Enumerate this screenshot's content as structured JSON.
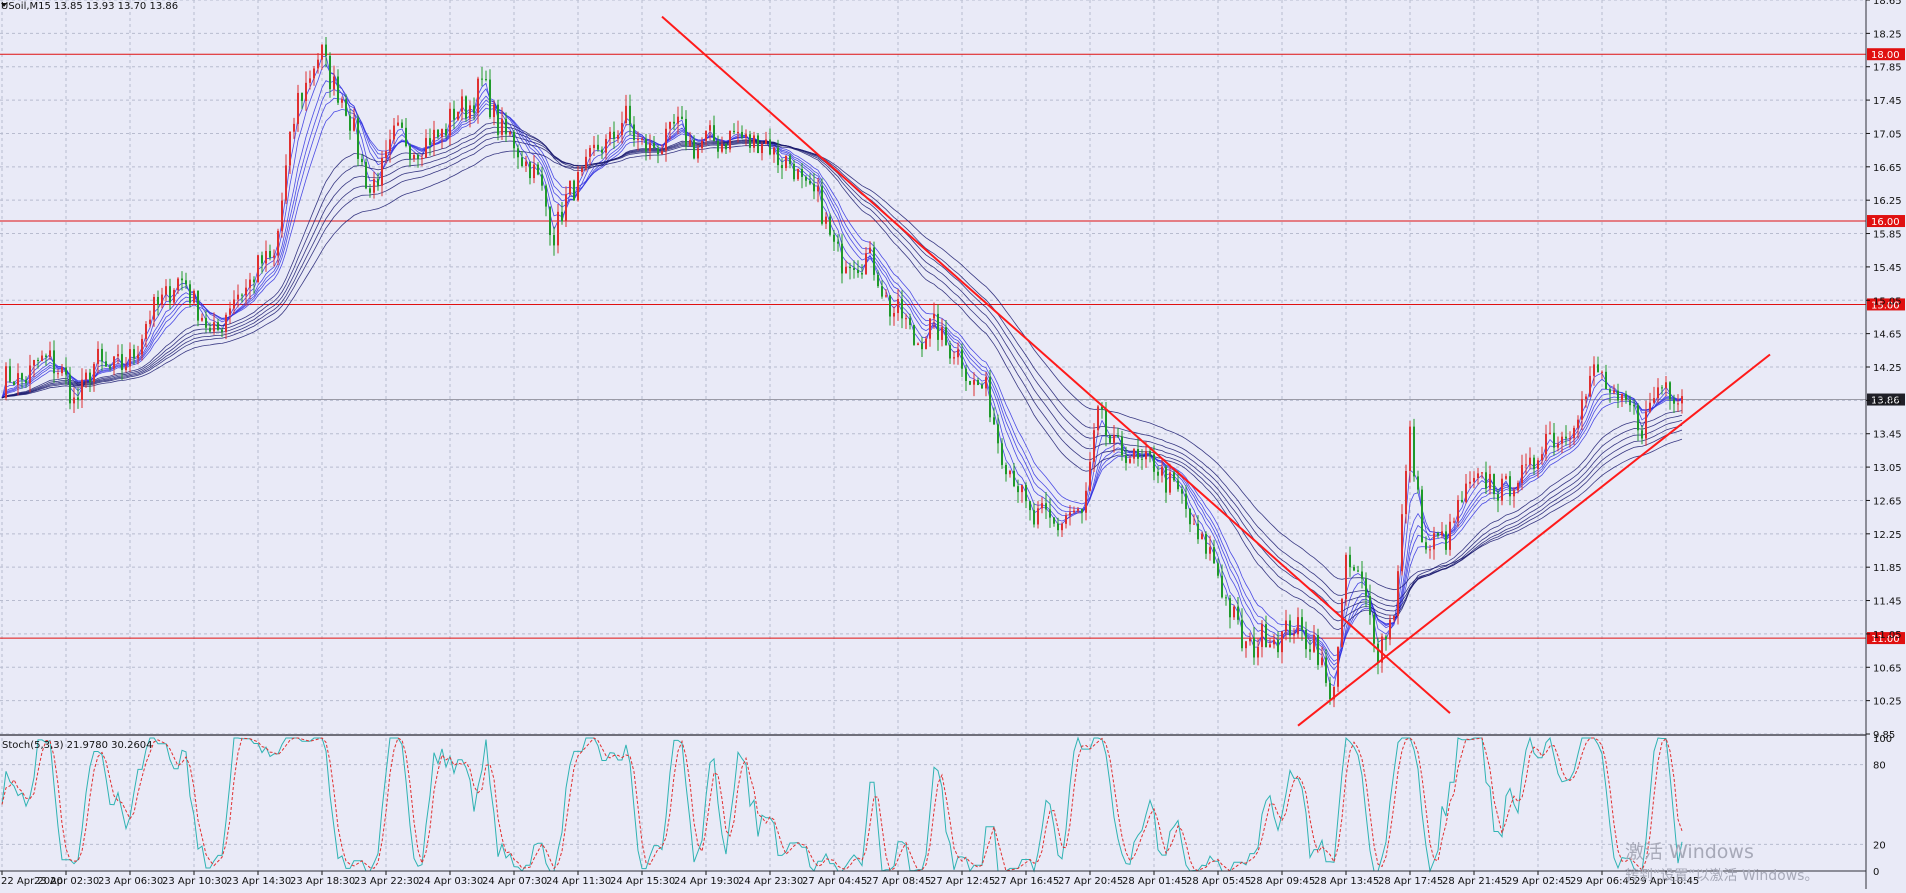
{
  "header": {
    "symbol_label": "USoil,M15  13.85 13.93 13.70 13.86"
  },
  "stoch_header": {
    "label": "Stoch(5,3,3) 21.9780 30.2604"
  },
  "watermark": {
    "line1": "激活 Windows",
    "line2": "转到“设置”以激活 Windows。"
  },
  "colors": {
    "background": "#e9eaf7",
    "grid": "#b8bccf",
    "bull_candle": "#e03030",
    "bear_candle": "#1f9a2a",
    "ribbon_fast": "#3030e0",
    "ribbon_slow": "#1a1a6e",
    "level_line": "#e01010",
    "trendline": "#ff1a1a",
    "current_price_line": "#9a9aa6",
    "stoch_main": "#2fb3b3",
    "stoch_signal": "#e03030"
  },
  "chart_data": [
    {
      "type": "candlestick",
      "title": "USoil,M15",
      "y_ticks": [
        "18.65",
        "18.25",
        "17.85",
        "17.45",
        "17.05",
        "16.65",
        "16.25",
        "15.85",
        "15.45",
        "15.05",
        "14.65",
        "14.25",
        "13.85",
        "13.45",
        "13.05",
        "12.65",
        "12.25",
        "11.85",
        "11.45",
        "11.05",
        "10.65",
        "10.25",
        "9.85"
      ],
      "ylim": [
        9.85,
        18.65
      ],
      "x_ticks": [
        "22 Apr 2020",
        "23 Apr 02:30",
        "23 Apr 06:30",
        "23 Apr 10:30",
        "23 Apr 14:30",
        "23 Apr 18:30",
        "23 Apr 22:30",
        "24 Apr 03:30",
        "24 Apr 07:30",
        "24 Apr 11:30",
        "24 Apr 15:30",
        "24 Apr 19:30",
        "24 Apr 23:30",
        "27 Apr 04:45",
        "27 Apr 08:45",
        "27 Apr 12:45",
        "27 Apr 16:45",
        "27 Apr 20:45",
        "28 Apr 01:45",
        "28 Apr 05:45",
        "28 Apr 09:45",
        "28 Apr 13:45",
        "28 Apr 17:45",
        "28 Apr 21:45",
        "29 Apr 02:45",
        "29 Apr 06:45",
        "29 Apr 10:45"
      ],
      "levels": [
        {
          "price": 18.0,
          "label": "18.00"
        },
        {
          "price": 16.0,
          "label": "16.00"
        },
        {
          "price": 15.0,
          "label": "15.00"
        },
        {
          "price": 11.0,
          "label": "11.00"
        }
      ],
      "current_price": {
        "price": 13.86,
        "label": "13.86"
      },
      "anchors": [
        {
          "i": 0,
          "p": 14.05
        },
        {
          "i": 8,
          "p": 14.2
        },
        {
          "i": 12,
          "p": 14.4
        },
        {
          "i": 18,
          "p": 13.85
        },
        {
          "i": 24,
          "p": 14.3
        },
        {
          "i": 30,
          "p": 14.2
        },
        {
          "i": 40,
          "p": 15.1
        },
        {
          "i": 46,
          "p": 15.3
        },
        {
          "i": 52,
          "p": 14.6
        },
        {
          "i": 60,
          "p": 15.2
        },
        {
          "i": 68,
          "p": 15.6
        },
        {
          "i": 74,
          "p": 17.5
        },
        {
          "i": 80,
          "p": 18.0
        },
        {
          "i": 88,
          "p": 17.1
        },
        {
          "i": 92,
          "p": 16.3
        },
        {
          "i": 98,
          "p": 17.0
        },
        {
          "i": 106,
          "p": 16.9
        },
        {
          "i": 112,
          "p": 17.2
        },
        {
          "i": 120,
          "p": 17.6
        },
        {
          "i": 126,
          "p": 17.0
        },
        {
          "i": 132,
          "p": 16.7
        },
        {
          "i": 138,
          "p": 15.9
        },
        {
          "i": 144,
          "p": 16.5
        },
        {
          "i": 150,
          "p": 16.9
        },
        {
          "i": 156,
          "p": 17.2
        },
        {
          "i": 162,
          "p": 16.8
        },
        {
          "i": 168,
          "p": 17.1
        },
        {
          "i": 174,
          "p": 16.9
        },
        {
          "i": 180,
          "p": 17.0
        },
        {
          "i": 186,
          "p": 17.0
        },
        {
          "i": 192,
          "p": 16.9
        },
        {
          "i": 198,
          "p": 16.6
        },
        {
          "i": 204,
          "p": 16.2
        },
        {
          "i": 210,
          "p": 15.5
        },
        {
          "i": 216,
          "p": 15.6
        },
        {
          "i": 222,
          "p": 15.0
        },
        {
          "i": 228,
          "p": 14.6
        },
        {
          "i": 234,
          "p": 14.7
        },
        {
          "i": 240,
          "p": 14.3
        },
        {
          "i": 246,
          "p": 13.9
        },
        {
          "i": 252,
          "p": 13.0
        },
        {
          "i": 258,
          "p": 12.4
        },
        {
          "i": 264,
          "p": 12.4
        },
        {
          "i": 270,
          "p": 12.5
        },
        {
          "i": 274,
          "p": 13.6
        },
        {
          "i": 280,
          "p": 13.2
        },
        {
          "i": 286,
          "p": 13.1
        },
        {
          "i": 292,
          "p": 12.9
        },
        {
          "i": 298,
          "p": 12.3
        },
        {
          "i": 304,
          "p": 11.8
        },
        {
          "i": 310,
          "p": 10.9
        },
        {
          "i": 316,
          "p": 11.0
        },
        {
          "i": 322,
          "p": 11.1
        },
        {
          "i": 328,
          "p": 11.0
        },
        {
          "i": 332,
          "p": 10.2
        },
        {
          "i": 336,
          "p": 11.8
        },
        {
          "i": 340,
          "p": 11.7
        },
        {
          "i": 344,
          "p": 10.8
        },
        {
          "i": 348,
          "p": 11.4
        },
        {
          "i": 352,
          "p": 13.4
        },
        {
          "i": 356,
          "p": 12.0
        },
        {
          "i": 362,
          "p": 12.3
        },
        {
          "i": 368,
          "p": 12.9
        },
        {
          "i": 374,
          "p": 12.8
        },
        {
          "i": 380,
          "p": 12.9
        },
        {
          "i": 386,
          "p": 13.4
        },
        {
          "i": 392,
          "p": 13.5
        },
        {
          "i": 398,
          "p": 14.2
        },
        {
          "i": 404,
          "p": 13.8
        },
        {
          "i": 410,
          "p": 13.6
        },
        {
          "i": 416,
          "p": 14.1
        },
        {
          "i": 420,
          "p": 13.9
        }
      ],
      "trendlines": [
        {
          "from": {
            "t": 165,
            "p": 18.45
          },
          "to": {
            "t": 362,
            "p": 10.1
          }
        },
        {
          "from": {
            "t": 324,
            "p": 9.95
          },
          "to": {
            "t": 442,
            "p": 14.4
          }
        }
      ]
    },
    {
      "type": "line",
      "title": "Stoch(5,3,3)",
      "series": [
        {
          "name": "main"
        },
        {
          "name": "signal"
        }
      ],
      "y_ticks": [
        "100",
        "80",
        "20",
        "0"
      ],
      "ylim": [
        0,
        100
      ],
      "last_main": 21.978,
      "last_signal": 30.2604
    }
  ]
}
